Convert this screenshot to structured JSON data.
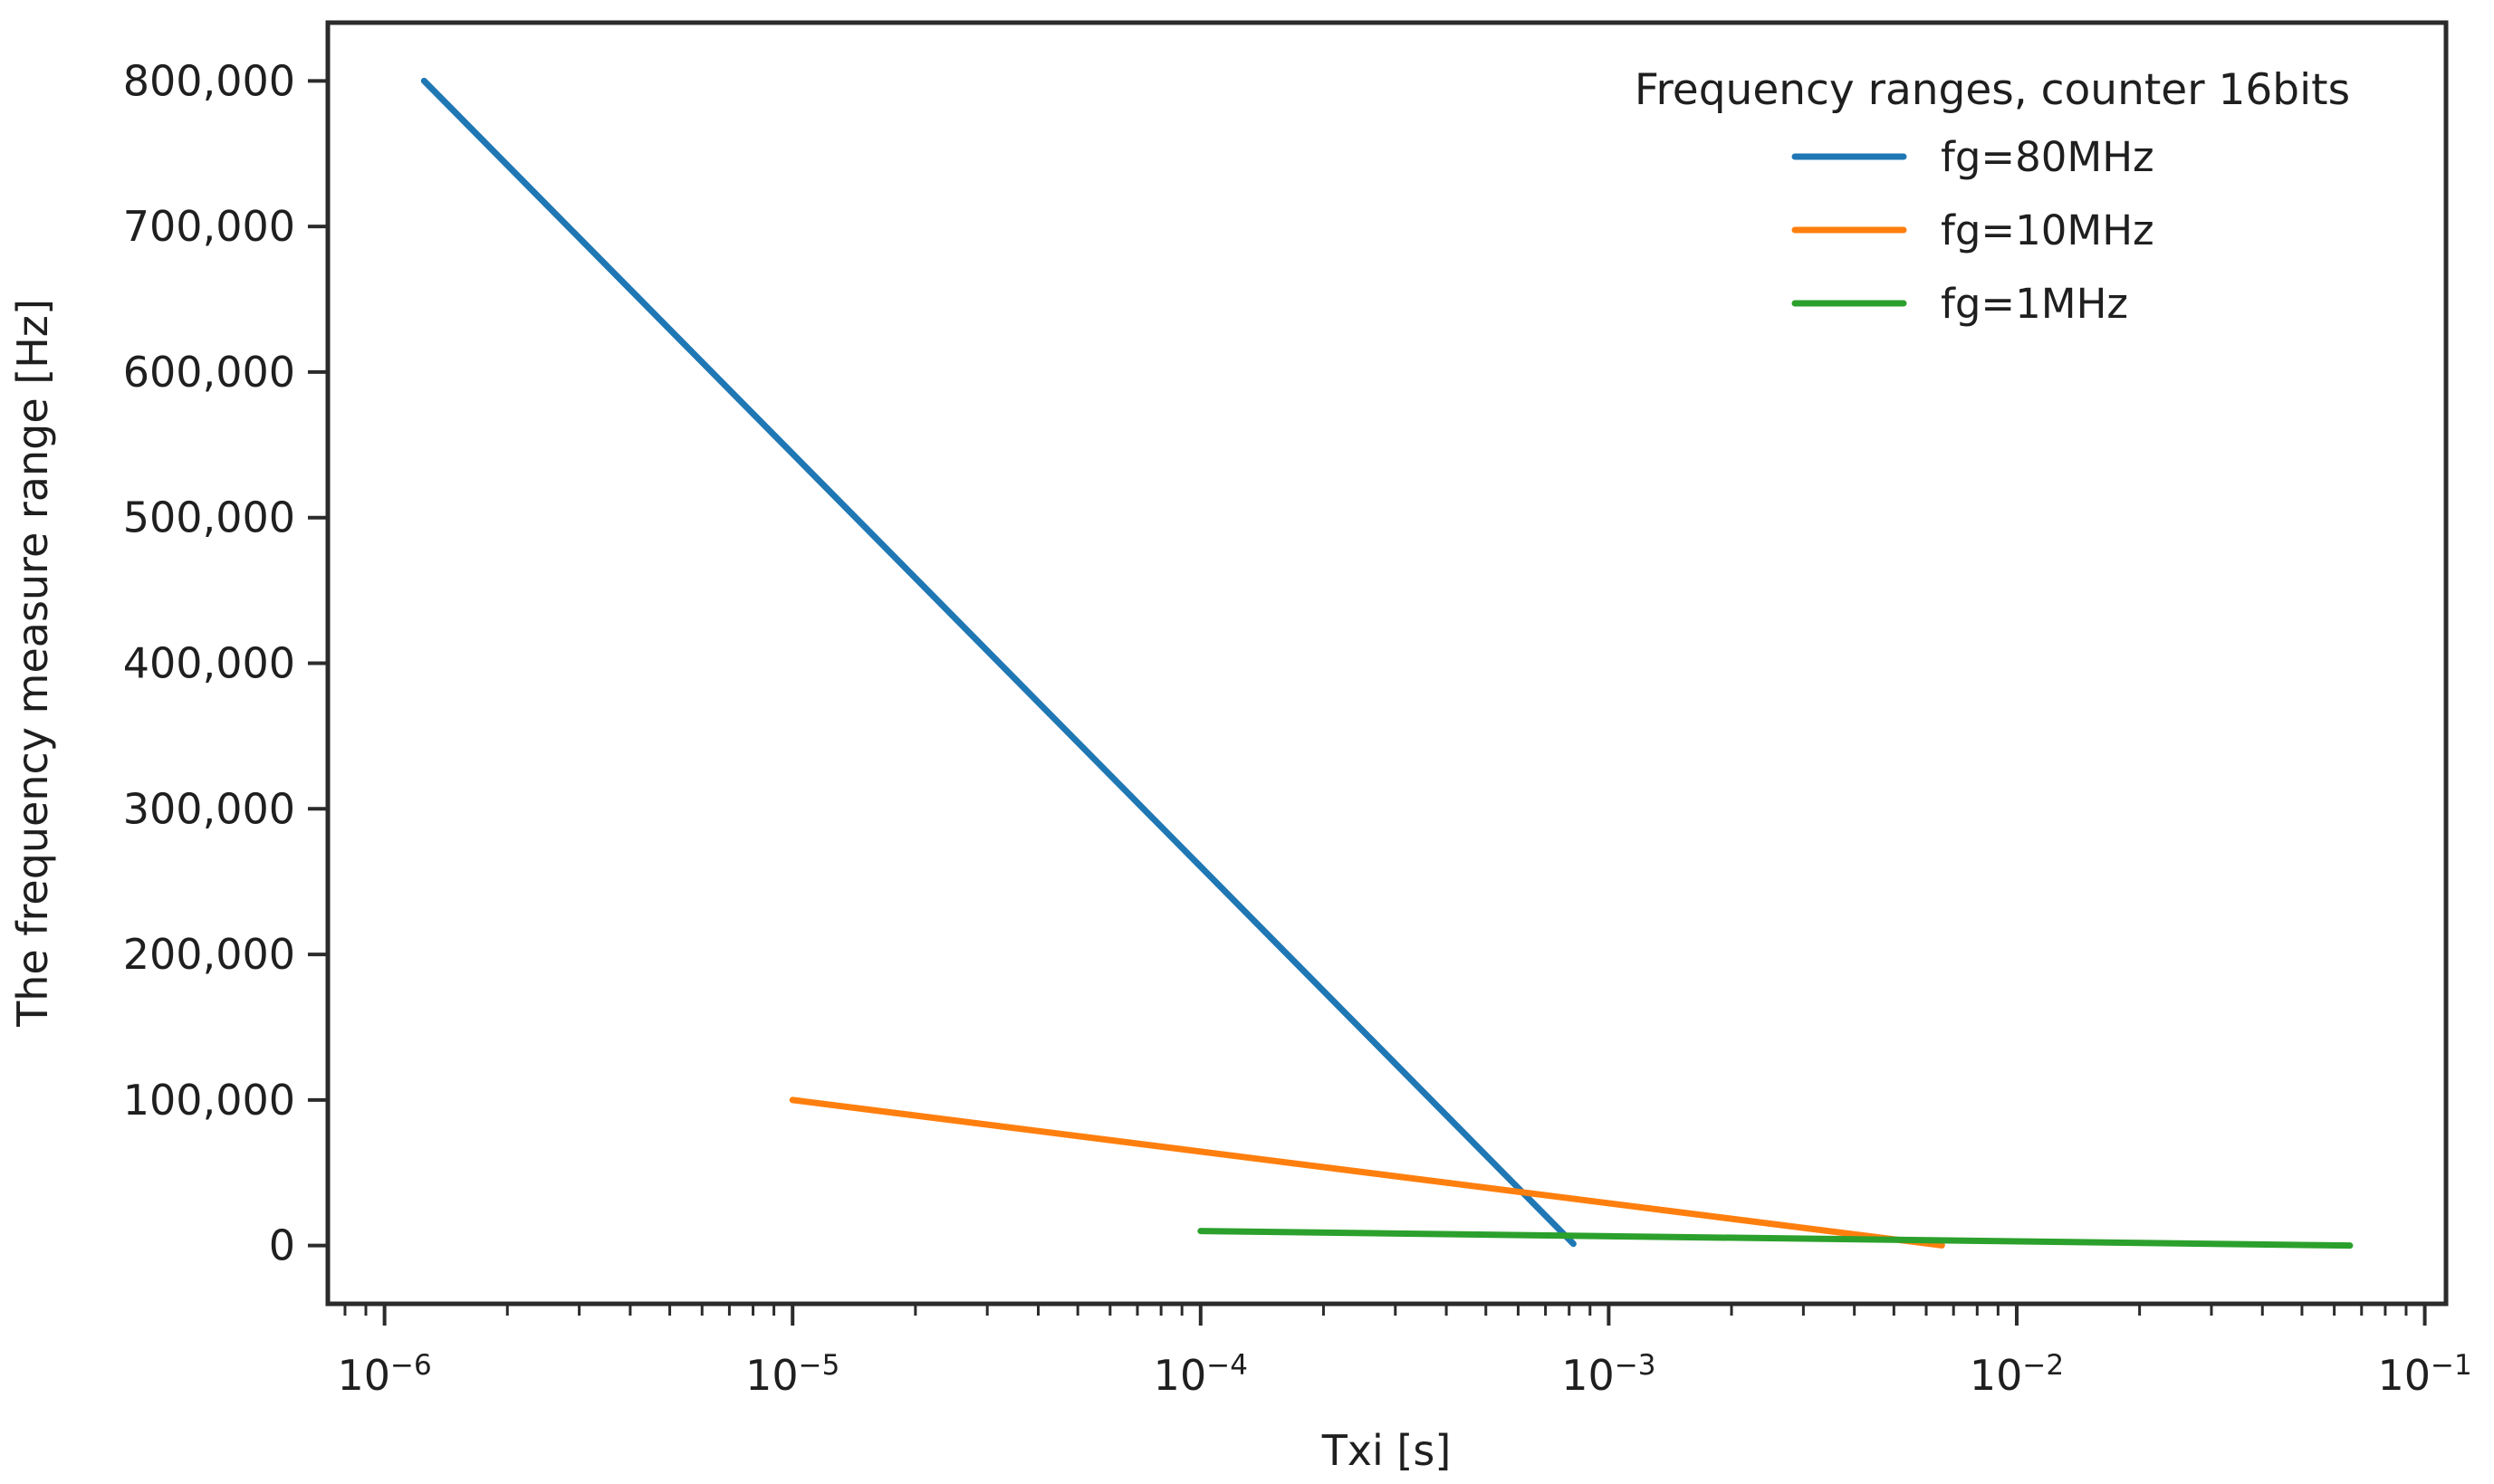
{
  "figure": {
    "background": "#ffffff"
  },
  "chart_data": {
    "type": "line",
    "title": "",
    "xlabel": "Txi [s]",
    "ylabel": "The frequency measure range [Hz]",
    "x_scale": "log",
    "y_scale": "linear",
    "xlim_log10": [
      -6.139,
      -0.948
    ],
    "ylim": [
      -40000,
      840000
    ],
    "grid": false,
    "axis_color": "#2b2b2b",
    "text_color": "#1f1f1f",
    "x_ticks": [
      {
        "exp": "-6",
        "label": "10^-6"
      },
      {
        "exp": "-5",
        "label": "10^-5"
      },
      {
        "exp": "-4",
        "label": "10^-4"
      },
      {
        "exp": "-3",
        "label": "10^-3"
      },
      {
        "exp": "-2",
        "label": "10^-2"
      },
      {
        "exp": "-1",
        "label": "10^-1"
      }
    ],
    "y_ticks": [
      {
        "value": 0,
        "label": "0"
      },
      {
        "value": 100000,
        "label": "100,000"
      },
      {
        "value": 200000,
        "label": "200,000"
      },
      {
        "value": 300000,
        "label": "300,000"
      },
      {
        "value": 400000,
        "label": "400,000"
      },
      {
        "value": 500000,
        "label": "500,000"
      },
      {
        "value": 600000,
        "label": "600,000"
      },
      {
        "value": 700000,
        "label": "700,000"
      },
      {
        "value": 800000,
        "label": "800,000"
      }
    ],
    "legend": {
      "title": "Frequency ranges, counter 16bits",
      "position": "upper right"
    },
    "series": [
      {
        "name": "fg=80MHz",
        "color": "#1f77b4",
        "points": [
          [
            1.25e-06,
            800000
          ],
          [
            0.0008192,
            1221
          ]
        ]
      },
      {
        "name": "fg=10MHz",
        "color": "#ff7f0e",
        "points": [
          [
            1e-05,
            100000
          ],
          [
            0.0065536,
            153
          ]
        ]
      },
      {
        "name": "fg=1MHz",
        "color": "#2ca02c",
        "points": [
          [
            0.0001,
            10000
          ],
          [
            0.065536,
            15
          ]
        ]
      }
    ]
  }
}
